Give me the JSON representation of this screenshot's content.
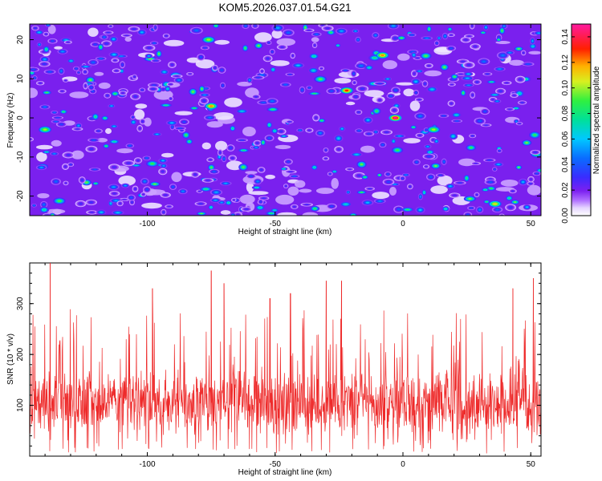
{
  "figure": {
    "title": "KOM5.2026.037.01.54.G21"
  },
  "colors": {
    "snr_line": "#ee2a2a",
    "axis": "#000000",
    "spectrogram_scale": [
      "#ffffff",
      "#c8a0ff",
      "#8a2be2",
      "#3a2cff",
      "#0a6cff",
      "#00d0ff",
      "#00e08a",
      "#40f040",
      "#e0f020",
      "#ff8000",
      "#ff0000",
      "#ff2090"
    ]
  },
  "chart_data": [
    {
      "type": "heatmap",
      "title": "KOM5.2026.037.01.54.G21",
      "xlabel": "Height of straight line (km)",
      "ylabel": "Frequency (Hz)",
      "xlim": [
        -146,
        54
      ],
      "ylim": [
        -25,
        24
      ],
      "xticks": [
        -100,
        -50,
        0,
        50
      ],
      "xtick_labels": [
        "-100",
        "-50",
        "0",
        "50"
      ],
      "yticks": [
        -20,
        -10,
        0,
        10,
        20
      ],
      "ytick_labels": [
        "-20",
        "-10",
        "0",
        "10",
        "20"
      ],
      "colorbar": {
        "label": "Normalized spectral amplitude",
        "range": [
          0,
          0.15
        ],
        "ticks": [
          0.0,
          0.02,
          0.04,
          0.06,
          0.08,
          0.1,
          0.12,
          0.14
        ],
        "tick_labels": [
          "0.00",
          "0.02",
          "0.04",
          "0.06",
          "0.08",
          "0.10",
          "0.12",
          "0.14"
        ]
      },
      "hot_spots": [
        {
          "x": -3,
          "y": 0,
          "value": 0.15
        },
        {
          "x": -22,
          "y": 7,
          "value": 0.13
        },
        {
          "x": -8,
          "y": 16,
          "value": 0.12
        },
        {
          "x": -75,
          "y": 3,
          "value": 0.12
        },
        {
          "x": -76,
          "y": 20,
          "value": 0.1
        },
        {
          "x": 36,
          "y": -22,
          "value": 0.11
        },
        {
          "x": -140,
          "y": -3,
          "value": 0.1
        },
        {
          "x": 12,
          "y": -3,
          "value": 0.1
        }
      ]
    },
    {
      "type": "line",
      "xlabel": "Height of straight line (km)",
      "ylabel": "SNR (10 * v/v)",
      "xlim": [
        -146,
        54
      ],
      "ylim": [
        0,
        380
      ],
      "xticks": [
        -100,
        -50,
        0,
        50
      ],
      "xtick_labels": [
        "-100",
        "-50",
        "0",
        "50"
      ],
      "yticks": [
        100,
        200,
        300
      ],
      "ytick_labels": [
        "100",
        "200",
        "300"
      ],
      "series": [
        {
          "name": "SNR",
          "description": "dense noisy trace, baseline near 100, peaks to ~380",
          "mean": 105,
          "peaks": [
            {
              "x": -138,
              "y": 380
            },
            {
              "x": -75,
              "y": 365
            },
            {
              "x": -70,
              "y": 340
            },
            {
              "x": -30,
              "y": 345
            },
            {
              "x": -24,
              "y": 345
            },
            {
              "x": -98,
              "y": 330
            },
            {
              "x": 51,
              "y": 350
            },
            {
              "x": 43,
              "y": 330
            },
            {
              "x": -52,
              "y": 310
            },
            {
              "x": -44,
              "y": 320
            }
          ]
        }
      ]
    }
  ]
}
